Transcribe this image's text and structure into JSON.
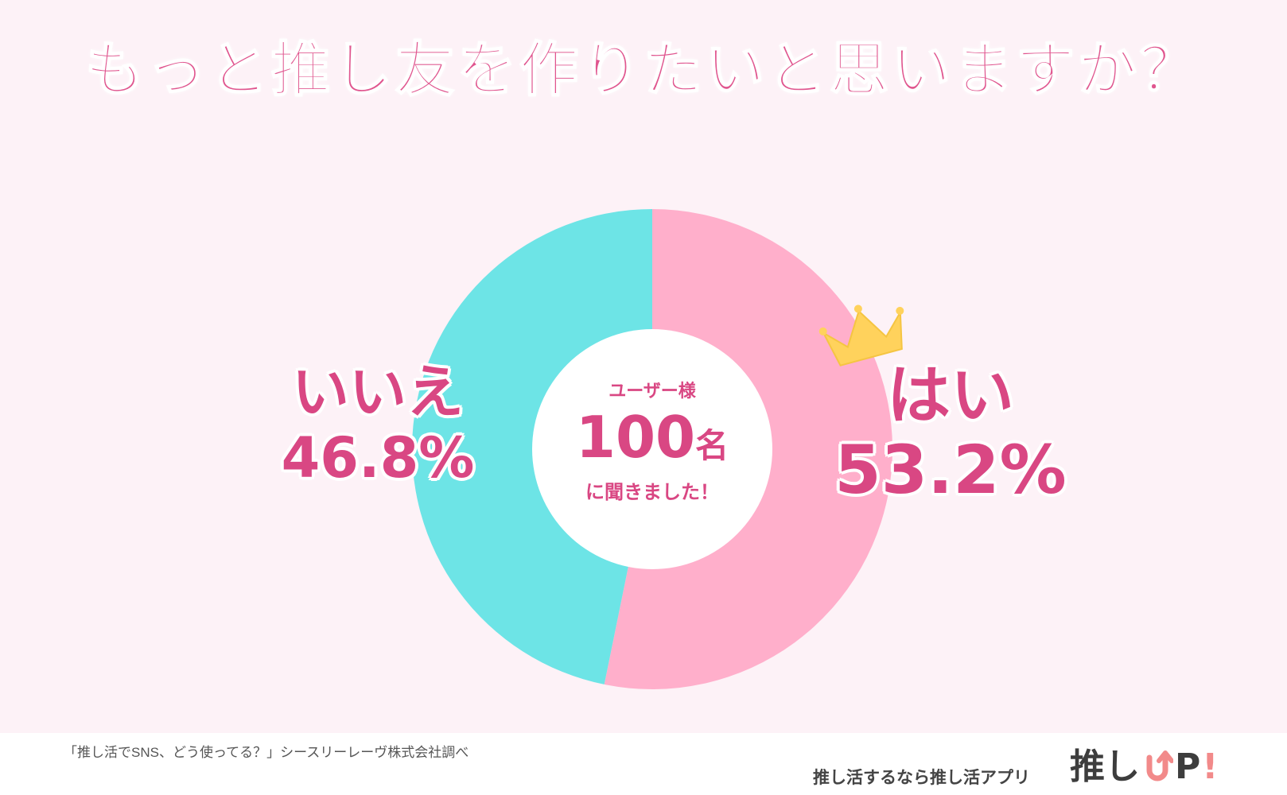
{
  "title": "もっと推し友を作りたいと思いますか？",
  "center": {
    "caption": "ユーザー様",
    "count": "100",
    "unit": "名",
    "subtitle": "に聞きました！"
  },
  "labels": {
    "no": {
      "name": "いいえ",
      "pct": "46.8%"
    },
    "yes": {
      "name": "はい",
      "pct": "53.2%"
    }
  },
  "footer": {
    "source": "「推し活でSNS、どう使ってる？」シースリーレーヴ株式会社調べ",
    "tagline": "推し活するなら推し活アプリ",
    "logo_text": "推し",
    "logo_p": "P",
    "logo_bang": "!"
  },
  "colors": {
    "yes": "#ffafcb",
    "no": "#6de4e6",
    "accent": "#d94783",
    "crown": "#ffd25c"
  },
  "icons": {
    "crown": "crown-icon",
    "logo_arrow": "up-arrow-icon"
  },
  "chart_data": {
    "type": "pie",
    "donut": true,
    "categories": [
      "はい",
      "いいえ"
    ],
    "values": [
      53.2,
      46.8
    ],
    "title": "もっと推し友を作りたいと思いますか？",
    "legend": "none"
  }
}
